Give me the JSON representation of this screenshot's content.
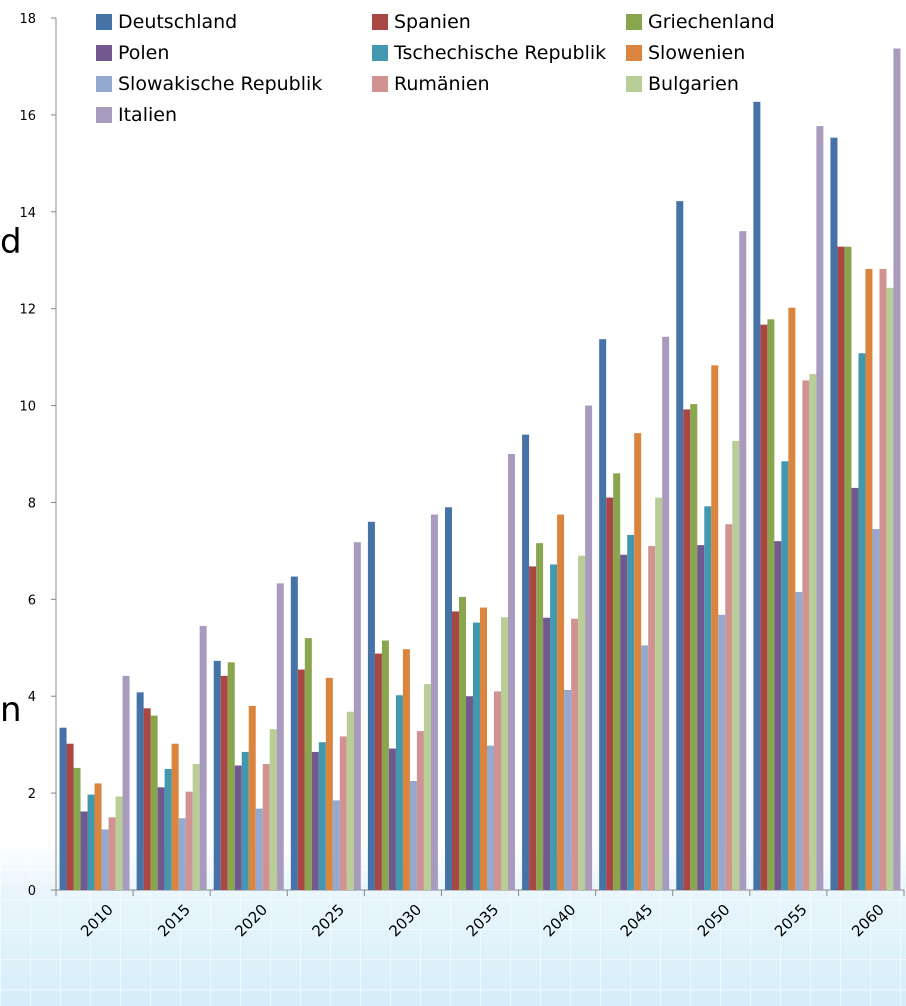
{
  "side_text": [
    "d",
    "n"
  ],
  "chart_data": {
    "type": "bar",
    "title": "",
    "xlabel": "",
    "ylabel": "",
    "ylim": [
      0,
      18
    ],
    "yticks": [
      0,
      2,
      4,
      6,
      8,
      10,
      12,
      14,
      16,
      18
    ],
    "grid": false,
    "legend_position": "top",
    "categories": [
      "2010",
      "2015",
      "2020",
      "2025",
      "2030",
      "2035",
      "2040",
      "2045",
      "2050",
      "2055",
      "2060"
    ],
    "series": [
      {
        "name": "Deutschland",
        "color": "#4572a7",
        "values": [
          3.35,
          4.08,
          4.73,
          6.47,
          7.6,
          7.9,
          9.4,
          11.37,
          14.22,
          16.27,
          15.53
        ]
      },
      {
        "name": "Spanien",
        "color": "#aa4643",
        "values": [
          3.02,
          3.75,
          4.42,
          4.55,
          4.88,
          5.75,
          6.68,
          8.1,
          9.92,
          11.67,
          13.28
        ]
      },
      {
        "name": "Griechenland",
        "color": "#89a54e",
        "values": [
          2.52,
          3.6,
          4.7,
          5.2,
          5.15,
          6.05,
          7.16,
          8.6,
          10.03,
          11.78,
          13.28
        ]
      },
      {
        "name": "Polen",
        "color": "#71588f",
        "values": [
          1.62,
          2.12,
          2.57,
          2.85,
          2.92,
          4.0,
          5.62,
          6.92,
          7.12,
          7.2,
          8.3
        ]
      },
      {
        "name": "Tschechische Republik",
        "color": "#4198af",
        "values": [
          1.97,
          2.5,
          2.85,
          3.05,
          4.02,
          5.52,
          6.72,
          7.33,
          7.92,
          8.85,
          11.08
        ]
      },
      {
        "name": "Slowenien",
        "color": "#db843d",
        "values": [
          2.2,
          3.02,
          3.8,
          4.38,
          4.97,
          5.83,
          7.75,
          9.43,
          10.83,
          12.02,
          12.82
        ]
      },
      {
        "name": "Slowakische Republik",
        "color": "#93a9cf",
        "values": [
          1.25,
          1.48,
          1.68,
          1.85,
          2.25,
          2.98,
          4.13,
          5.05,
          5.68,
          6.15,
          7.45
        ]
      },
      {
        "name": "Rumänien",
        "color": "#d19392",
        "values": [
          1.5,
          2.03,
          2.6,
          3.17,
          3.28,
          4.1,
          5.6,
          7.1,
          7.55,
          10.52,
          12.82
        ]
      },
      {
        "name": "Bulgarien",
        "color": "#b9cd96",
        "values": [
          1.93,
          2.6,
          3.32,
          3.68,
          4.25,
          5.63,
          6.9,
          8.1,
          9.27,
          10.65,
          12.43
        ]
      },
      {
        "name": "Italien",
        "color": "#a99bbd",
        "values": [
          4.42,
          5.45,
          6.33,
          7.18,
          7.75,
          9.0,
          10.0,
          11.42,
          13.6,
          15.77,
          17.37
        ]
      }
    ]
  }
}
